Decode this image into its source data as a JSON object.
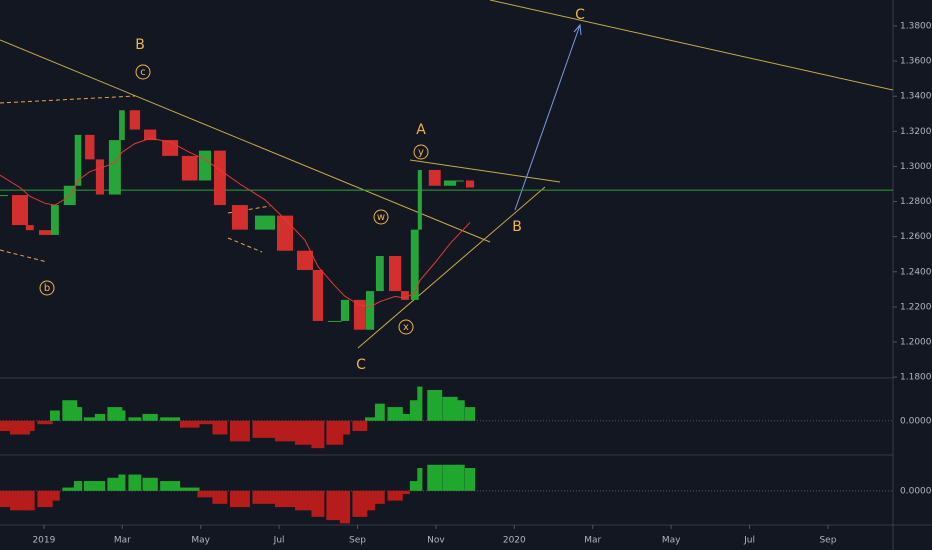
{
  "chart_data": {
    "type": "candlestick",
    "x": [
      -1.12,
      -0.61,
      -0.36,
      0.03,
      0.28,
      0.66,
      0.87,
      1.17,
      1.43,
      1.81,
      1.99,
      2.32,
      2.71,
      3.22,
      3.72,
      4.11,
      4.49,
      5.0,
      5.64,
      6.15,
      6.66,
      6.99,
      7.42,
      7.68,
      8.06,
      8.32,
      8.57,
      8.96,
      9.21,
      9.46,
      9.59,
      9.97,
      10.36,
      10.61,
      10.87
    ],
    "values": [
      1.2837,
      1.2666,
      1.2637,
      1.261,
      1.278,
      1.289,
      1.318,
      1.304,
      1.284,
      1.315,
      1.332,
      1.321,
      1.315,
      1.306,
      1.292,
      1.309,
      1.278,
      1.264,
      1.272,
      1.252,
      1.241,
      1.212,
      1.212,
      1.224,
      1.207,
      1.229,
      1.249,
      1.229,
      1.224,
      1.264,
      1.298,
      1.289,
      1.292,
      1.292,
      1.288
    ],
    "ma_values": [
      1.295,
      1.288,
      1.283,
      1.279,
      1.278,
      1.283,
      1.292,
      1.297,
      1.299,
      1.302,
      1.308,
      1.313,
      1.316,
      1.314,
      1.308,
      1.304,
      1.298,
      1.29,
      1.281,
      1.27,
      1.258,
      1.243,
      1.232,
      1.226,
      1.221,
      1.22,
      1.223,
      1.226,
      1.225,
      1.228,
      1.235,
      1.245,
      1.256,
      1.262,
      1.268
    ],
    "up_color": "#26a63a",
    "down_color": "#d32f2f",
    "ma_color": "#e53935",
    "hline": 1.2865,
    "xlim": [
      -1.12,
      21.66
    ],
    "xticks": [
      {
        "value": 0,
        "label": "2019"
      },
      {
        "value": 2,
        "label": "Mar"
      },
      {
        "value": 4,
        "label": "May"
      },
      {
        "value": 6,
        "label": "Jul"
      },
      {
        "value": 8,
        "label": "Sep"
      },
      {
        "value": 10,
        "label": "Nov"
      },
      {
        "value": 12,
        "label": "2020"
      },
      {
        "value": 14,
        "label": "Mar"
      },
      {
        "value": 16,
        "label": "May"
      },
      {
        "value": 18,
        "label": "Jul"
      },
      {
        "value": 20,
        "label": "Sep"
      }
    ],
    "ylim": [
      1.1795,
      1.3948
    ],
    "yticks": [
      {
        "value": 1.18,
        "label": "1.18000"
      },
      {
        "value": 1.2,
        "label": "1.20000"
      },
      {
        "value": 1.22,
        "label": "1.22000"
      },
      {
        "value": 1.24,
        "label": "1.24000"
      },
      {
        "value": 1.26,
        "label": "1.26000"
      },
      {
        "value": 1.28,
        "label": "1.28000"
      },
      {
        "value": 1.3,
        "label": "1.30000"
      },
      {
        "value": 1.32,
        "label": "1.32000"
      },
      {
        "value": 1.34,
        "label": "1.34000"
      },
      {
        "value": 1.36,
        "label": "1.36000"
      },
      {
        "value": 1.38,
        "label": "1.38000"
      }
    ],
    "oscillators": [
      {
        "values": [
          -0.3,
          -0.4,
          -0.3,
          -0.1,
          0.3,
          0.6,
          0.4,
          0.1,
          0.2,
          0.4,
          0.3,
          0.1,
          0.2,
          0.1,
          -0.2,
          -0.1,
          -0.4,
          -0.6,
          -0.5,
          -0.6,
          -0.7,
          -0.8,
          -0.7,
          -0.4,
          -0.3,
          0.1,
          0.5,
          0.4,
          0.2,
          0.6,
          1.0,
          0.9,
          0.7,
          0.6,
          0.4
        ],
        "ylim": [
          -1.0,
          1.25
        ],
        "yticks": [
          {
            "value": 0,
            "label": "0.00000"
          }
        ]
      },
      {
        "values": [
          -0.5,
          -0.6,
          -0.6,
          -0.5,
          -0.3,
          0.1,
          0.3,
          0.3,
          0.3,
          0.4,
          0.5,
          0.5,
          0.4,
          0.3,
          0.1,
          -0.2,
          -0.4,
          -0.5,
          -0.4,
          -0.5,
          -0.6,
          -0.8,
          -0.9,
          -1.0,
          -0.8,
          -0.6,
          -0.4,
          -0.3,
          -0.1,
          0.3,
          0.7,
          0.8,
          0.8,
          0.8,
          0.7
        ],
        "ylim": [
          -1.05,
          1.1
        ],
        "yticks": [
          {
            "value": 0,
            "label": "0.00000"
          }
        ]
      }
    ],
    "annotations": [
      "B",
      "c",
      "b",
      "A",
      "y",
      "w",
      "x",
      "C",
      "B",
      "C"
    ]
  }
}
